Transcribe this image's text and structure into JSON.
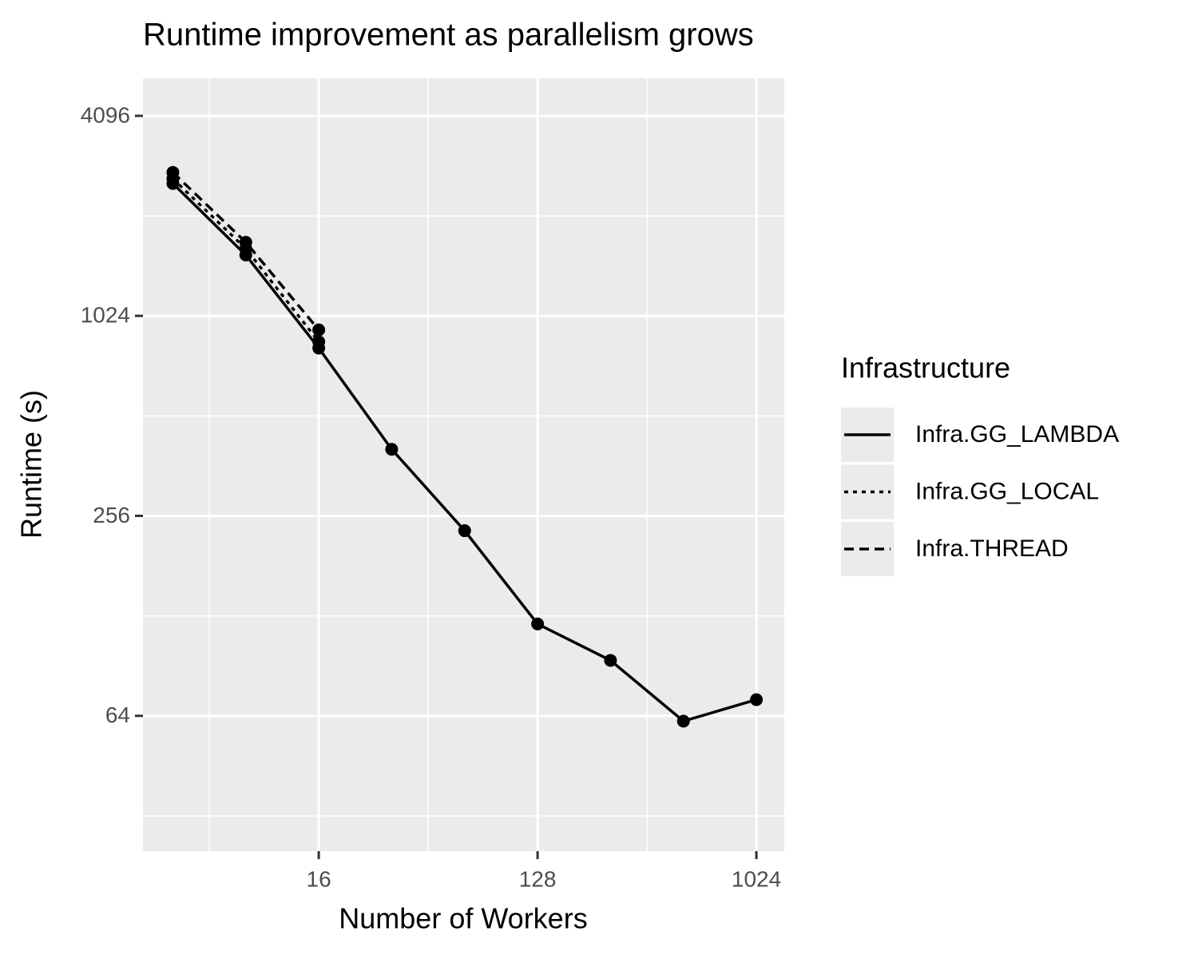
{
  "chart_data": {
    "type": "line",
    "title": "Runtime improvement as parallelism grows",
    "x_label": "Number of Workers",
    "y_label": "Runtime (s)",
    "x": [
      4,
      8,
      16,
      32,
      64,
      128,
      256,
      512,
      1024
    ],
    "series": [
      {
        "name": "Infra.GG_LAMBDA",
        "color": "#000000",
        "dash": "solid",
        "values": [
          2563,
          1561,
          819,
          406,
          231,
          121,
          94,
          61.7,
          71.6
        ]
      },
      {
        "name": "Infra.GG_LOCAL",
        "color": "#000000",
        "dash": "dotted",
        "values": [
          2650,
          1631,
          856,
          null,
          null,
          null,
          null,
          null,
          null
        ]
      },
      {
        "name": "Infra.THREAD",
        "color": "#000000",
        "dash": "dashed",
        "values": [
          2768,
          1705,
          929,
          null,
          null,
          null,
          null,
          null,
          null
        ]
      }
    ],
    "legend_title": "Infrastructure",
    "legend": "right",
    "x_log": true,
    "y_log": true,
    "grid": true,
    "xlim": [
      3.01,
      1335
    ],
    "xticks": [
      16,
      128,
      1024
    ],
    "ylim": [
      25.06,
      5313
    ],
    "yticks": [
      64,
      256,
      1024,
      4096
    ]
  }
}
